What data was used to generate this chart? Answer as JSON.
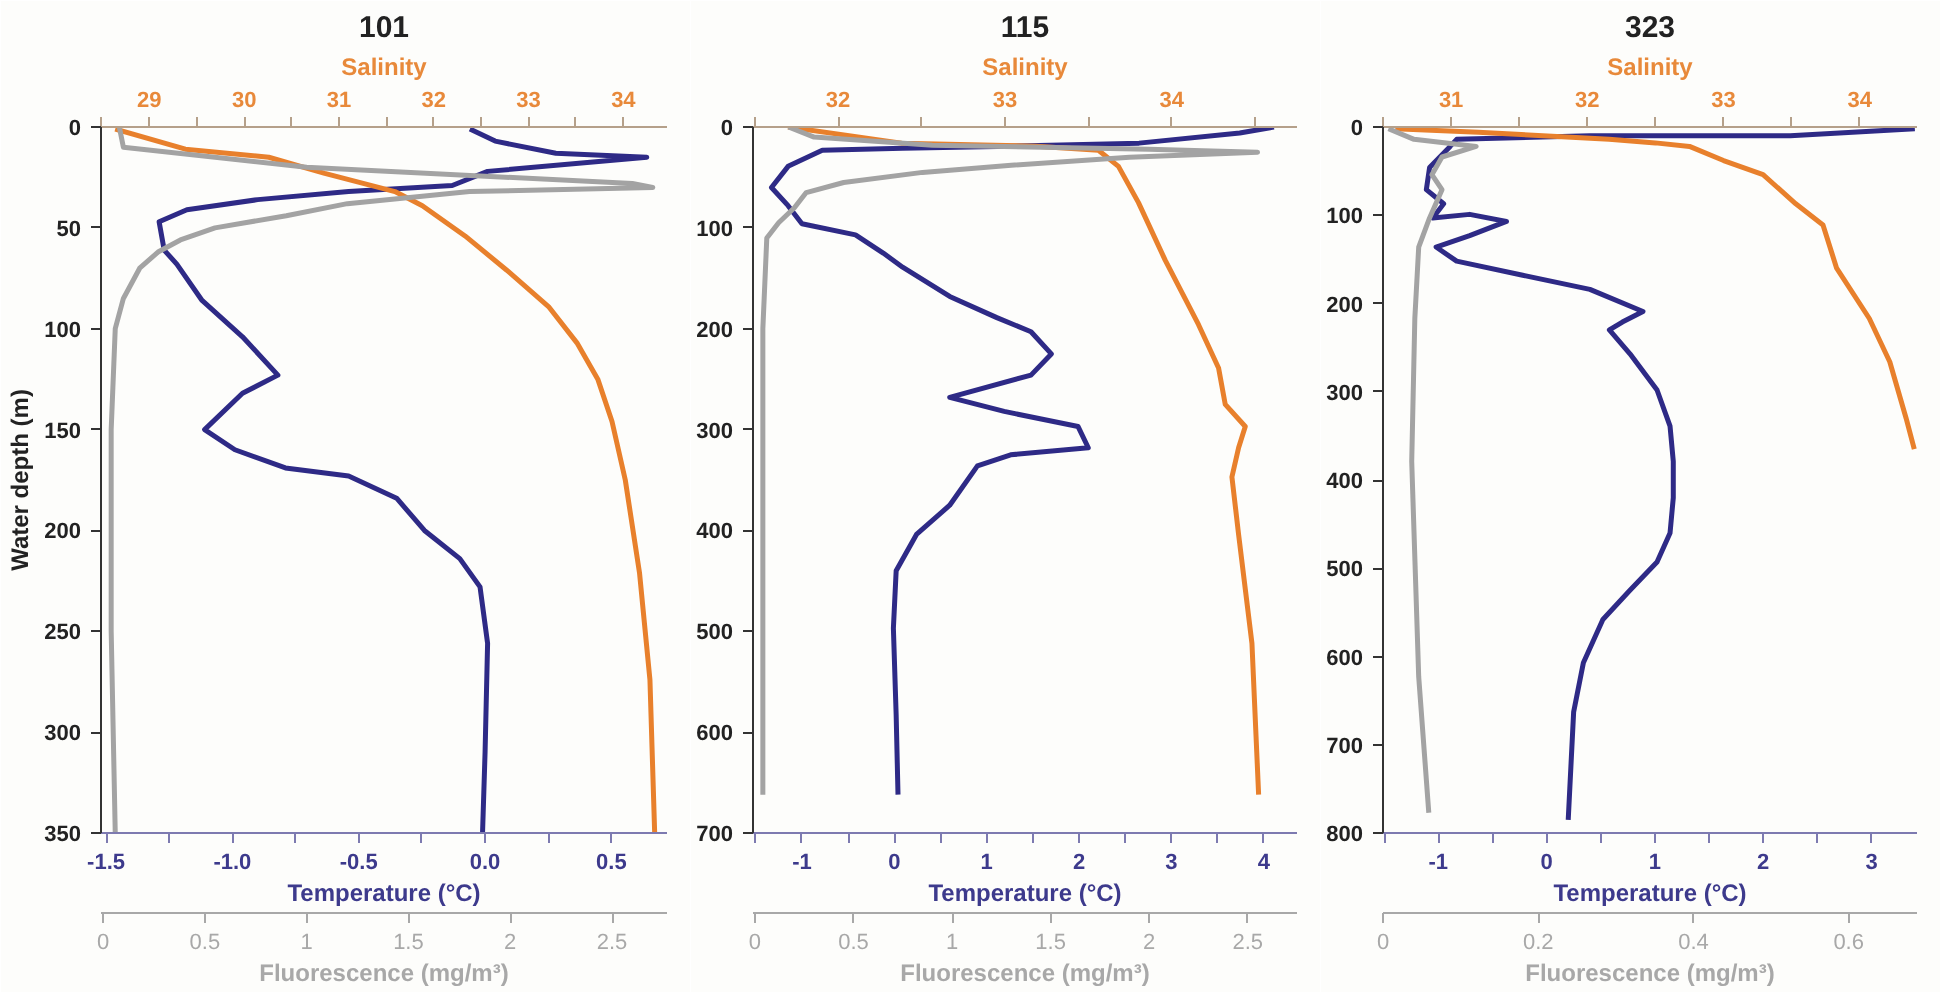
{
  "chart_data": [
    {
      "type": "line",
      "title": "101",
      "ylabel": "Water depth (m)",
      "xlabel": "Temperature (°C)",
      "x2label": "Salinity",
      "xlim": [
        -1.52,
        0.72
      ],
      "xticks": [
        -1.5,
        {
          "value": -1.25,
          "label": null
        },
        {
          "value": -1,
          "label": "-1.0"
        },
        {
          "value": -0.75,
          "label": null
        },
        -0.5,
        {
          "value": -0.25,
          "label": null
        },
        {
          "value": 0,
          "label": "0.0"
        },
        {
          "value": 0.25,
          "label": null
        },
        0.5
      ],
      "x2lim": [
        28.49,
        34.46
      ],
      "x2ticks": [
        {
          "value": 28.5,
          "label": null
        },
        29,
        {
          "value": 29.5,
          "label": null
        },
        30,
        {
          "value": 30.5,
          "label": null
        },
        31,
        {
          "value": 31.5,
          "label": null
        },
        32,
        {
          "value": 32.5,
          "label": null
        },
        33,
        {
          "value": 33.5,
          "label": null
        },
        34
      ],
      "ylim": [
        350,
        0
      ],
      "yticks": [
        0,
        50,
        100,
        150,
        200,
        250,
        300,
        350
      ],
      "series": [
        {
          "color": "#2e2a86",
          "x": [
            -0.06,
            0.04,
            0.28,
            0.64,
            0.01,
            -0.13,
            -0.54,
            -0.9,
            -1.18,
            -1.29,
            -1.27,
            -1.22,
            -1.12,
            -0.96,
            -0.82,
            -0.96,
            -1.11,
            -0.99,
            -0.79,
            -0.54,
            -0.35,
            -0.24,
            -0.1,
            -0.02,
            0.01,
            0.0,
            -0.01
          ],
          "values": [
            1,
            7,
            13,
            15,
            22,
            29,
            32,
            36,
            41,
            47,
            61,
            68,
            86,
            104,
            123,
            132,
            150,
            160,
            169,
            173,
            184,
            200,
            214,
            228,
            256,
            310,
            350
          ]
        },
        {
          "color": "#e8802c",
          "axis": "x2",
          "x": [
            28.64,
            29.38,
            30.26,
            30.85,
            31.59,
            31.88,
            32.33,
            32.77,
            33.21,
            33.51,
            33.73,
            33.88,
            34.02,
            34.17,
            34.28,
            34.33
          ],
          "values": [
            1,
            11,
            15,
            23,
            32,
            39,
            54,
            71,
            89,
            107,
            125,
            146,
            175,
            221,
            274,
            350
          ]
        }
      ]
    },
    {
      "type": "line",
      "tick_labels": "x",
      "xlabel": "Fluorescence (mg/m³)",
      "xlim": [
        -0.01,
        2.77
      ],
      "xticks": [
        0,
        0.5,
        1,
        1.5,
        2,
        2.5
      ],
      "ylim": [
        350,
        0
      ],
      "series": [
        {
          "color": "#a3a3a3",
          "x": [
            0.08,
            0.1,
            1.0,
            2.6,
            2.7,
            1.8,
            1.2,
            0.9,
            0.55,
            0.38,
            0.27,
            0.18,
            0.1,
            0.06,
            0.04,
            0.04,
            0.06
          ],
          "values": [
            0,
            10,
            20,
            28,
            30,
            32,
            38,
            44,
            50,
            56,
            62,
            70,
            85,
            100,
            150,
            250,
            350
          ]
        }
      ]
    },
    {
      "type": "line",
      "title": "115",
      "xlabel": "Temperature (°C)",
      "x2label": "Salinity",
      "xlim": [
        -1.53,
        4.36
      ],
      "xticks": [
        {
          "value": -1.5,
          "label": null
        },
        -1,
        {
          "value": -0.5,
          "label": null
        },
        0,
        {
          "value": 0.5,
          "label": null
        },
        1,
        {
          "value": 1.5,
          "label": null
        },
        2,
        {
          "value": 2.5,
          "label": null
        },
        3,
        {
          "value": 3.5,
          "label": null
        },
        4
      ],
      "x2lim": [
        31.49,
        34.75
      ],
      "x2ticks": [
        {
          "value": 31.5,
          "label": null
        },
        32,
        {
          "value": 32.5,
          "label": null
        },
        33,
        {
          "value": 33.5,
          "label": null
        },
        34,
        {
          "value": 34.5,
          "label": null
        }
      ],
      "ylim": [
        700,
        0
      ],
      "yticks": [
        0,
        100,
        200,
        300,
        400,
        500,
        600,
        700
      ],
      "series": [
        {
          "color": "#2e2a86",
          "x": [
            4.11,
            3.74,
            2.65,
            1.26,
            0.09,
            -0.78,
            -1.15,
            -1.33,
            -1.15,
            -1.0,
            -0.42,
            -0.12,
            0.09,
            0.6,
            1.11,
            1.48,
            1.7,
            1.48,
            0.6,
            1.19,
            1.99,
            2.1,
            1.26,
            0.9,
            0.6,
            0.24,
            0.02,
            -0.01,
            0.02,
            0.04
          ],
          "values": [
            0,
            6,
            16,
            19,
            21,
            23,
            39,
            60,
            78,
            96,
            107,
            125,
            139,
            168,
            189,
            203,
            225,
            246,
            268,
            282,
            297,
            318,
            325,
            336,
            375,
            404,
            440,
            497,
            583,
            662
          ]
        },
        {
          "color": "#e8802c",
          "axis": "x2",
          "x": [
            31.7,
            32.38,
            33.19,
            33.56,
            33.68,
            33.8,
            33.96,
            34.16,
            34.28,
            34.32,
            34.44,
            34.4,
            34.36,
            34.4,
            34.48,
            34.52
          ],
          "values": [
            0,
            16,
            19,
            23,
            39,
            75,
            132,
            196,
            239,
            275,
            297,
            318,
            347,
            404,
            512,
            662
          ]
        }
      ]
    },
    {
      "type": "line",
      "tick_labels": "x",
      "xlabel": "Fluorescence (mg/m³)",
      "xlim": [
        -0.01,
        2.75
      ],
      "xticks": [
        0,
        0.5,
        1,
        1.5,
        2,
        2.5
      ],
      "ylim": [
        700,
        0
      ],
      "series": [
        {
          "color": "#a3a3a3",
          "x": [
            0.17,
            0.3,
            0.9,
            2.0,
            2.55,
            1.9,
            1.3,
            0.85,
            0.45,
            0.26,
            0.2,
            0.12,
            0.06,
            0.04,
            0.04,
            0.04
          ],
          "values": [
            0,
            10,
            18,
            22,
            25,
            30,
            38,
            45,
            55,
            65,
            80,
            95,
            110,
            200,
            400,
            662
          ]
        }
      ]
    },
    {
      "type": "line",
      "title": "323",
      "xlabel": "Temperature (°C)",
      "x2label": "Salinity",
      "xlim": [
        -1.51,
        3.42
      ],
      "xticks": [
        {
          "value": -1.5,
          "label": null
        },
        -1,
        {
          "value": -0.5,
          "label": null
        },
        0,
        {
          "value": 0.5,
          "label": null
        },
        1,
        {
          "value": 1.5,
          "label": null
        },
        2,
        {
          "value": 2.5,
          "label": null
        },
        3
      ],
      "x2lim": [
        30.5,
        34.42
      ],
      "x2ticks": [
        {
          "value": 30.5,
          "label": null
        },
        31,
        {
          "value": 31.5,
          "label": null
        },
        32,
        {
          "value": 32.5,
          "label": null
        },
        33,
        {
          "value": 33.5,
          "label": null
        },
        34
      ],
      "ylim": [
        800,
        0
      ],
      "yticks": [
        0,
        100,
        200,
        300,
        400,
        500,
        600,
        700,
        800
      ],
      "series": [
        {
          "color": "#2e2a86",
          "x": [
            3.4,
            2.25,
            1.63,
            0.4,
            -0.83,
            -0.89,
            -1.08,
            -1.11,
            -0.95,
            -1.05,
            -0.71,
            -0.37,
            -0.71,
            -1.02,
            -0.83,
            -0.22,
            0.4,
            0.89,
            0.7,
            0.58,
            0.77,
            1.02,
            1.14,
            1.17,
            1.17,
            1.14,
            1.02,
            0.77,
            0.52,
            0.34,
            0.25,
            0.2
          ],
          "values": [
            2,
            10,
            10,
            10,
            14,
            22,
            46,
            71,
            87,
            103,
            99,
            107,
            123,
            136,
            152,
            168,
            184,
            209,
            221,
            230,
            257,
            298,
            339,
            379,
            420,
            460,
            493,
            525,
            558,
            607,
            663,
            785
          ]
        },
        {
          "color": "#e8802c",
          "axis": "x2",
          "x": [
            30.59,
            31.2,
            32.16,
            32.5,
            32.75,
            33.0,
            33.29,
            33.53,
            33.73,
            33.83,
            34.07,
            34.22,
            34.34,
            34.4
          ],
          "values": [
            2,
            6,
            14,
            18,
            22,
            38,
            54,
            87,
            111,
            160,
            217,
            266,
            330,
            365
          ]
        }
      ]
    },
    {
      "type": "line",
      "tick_labels": "x",
      "xlabel": "Fluorescence (mg/m³)",
      "xlim": [
        0,
        0.688
      ],
      "xticks": [
        0,
        0.2,
        0.4,
        0.6
      ],
      "ylim": [
        800,
        0
      ],
      "series": [
        {
          "color": "#a3a3a3",
          "x": [
            0.007,
            0.04,
            0.12,
            0.076,
            0.063,
            0.076,
            0.06,
            0.046,
            0.041,
            0.037,
            0.046,
            0.059
          ],
          "values": [
            2,
            14,
            22,
            34,
            54,
            71,
            103,
            136,
            217,
            379,
            623,
            777
          ]
        }
      ]
    }
  ]
}
